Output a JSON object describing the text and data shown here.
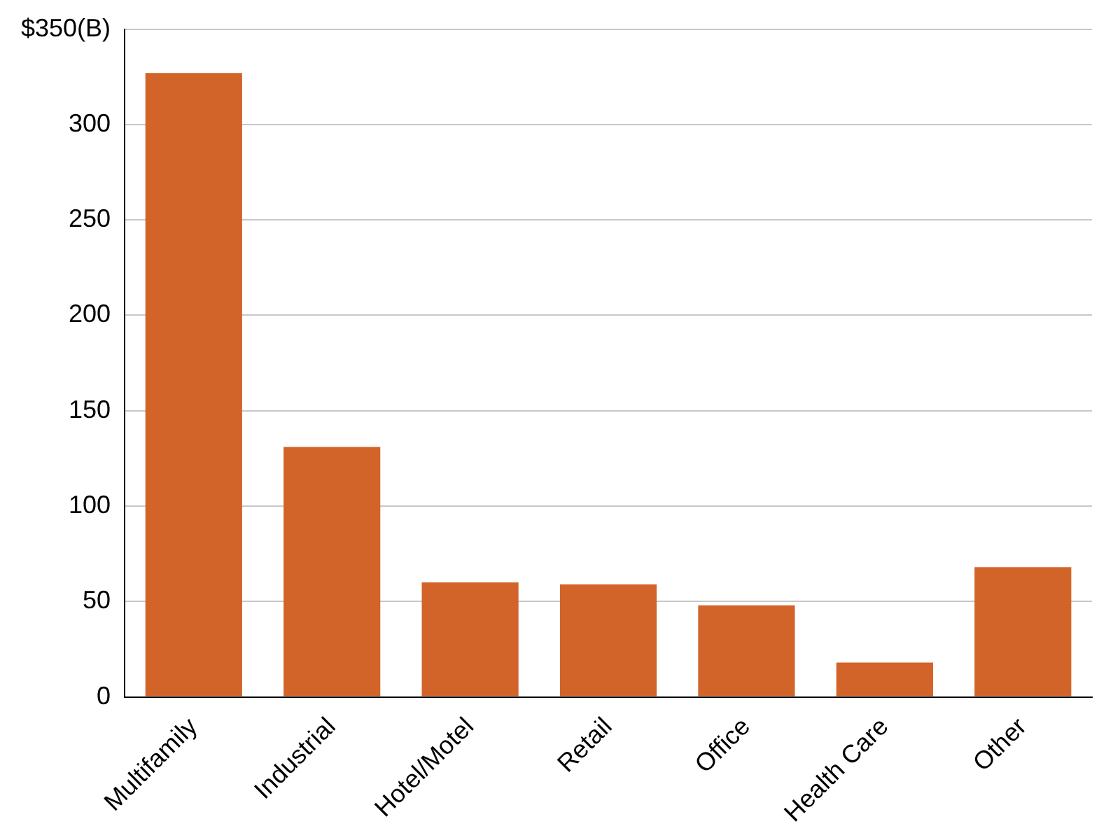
{
  "chart_data": {
    "type": "bar",
    "categories": [
      "Multifamily",
      "Industrial",
      "Hotel/Motel",
      "Retail",
      "Office",
      "Health Care",
      "Other"
    ],
    "values": [
      327,
      131,
      60,
      59,
      48,
      18,
      68
    ],
    "color": "#d2642a",
    "ylim": [
      0,
      350
    ],
    "yticks": [
      0,
      50,
      100,
      150,
      200,
      250,
      300,
      {
        "value": 350,
        "label": "$350(B)"
      }
    ],
    "grid": "y"
  }
}
